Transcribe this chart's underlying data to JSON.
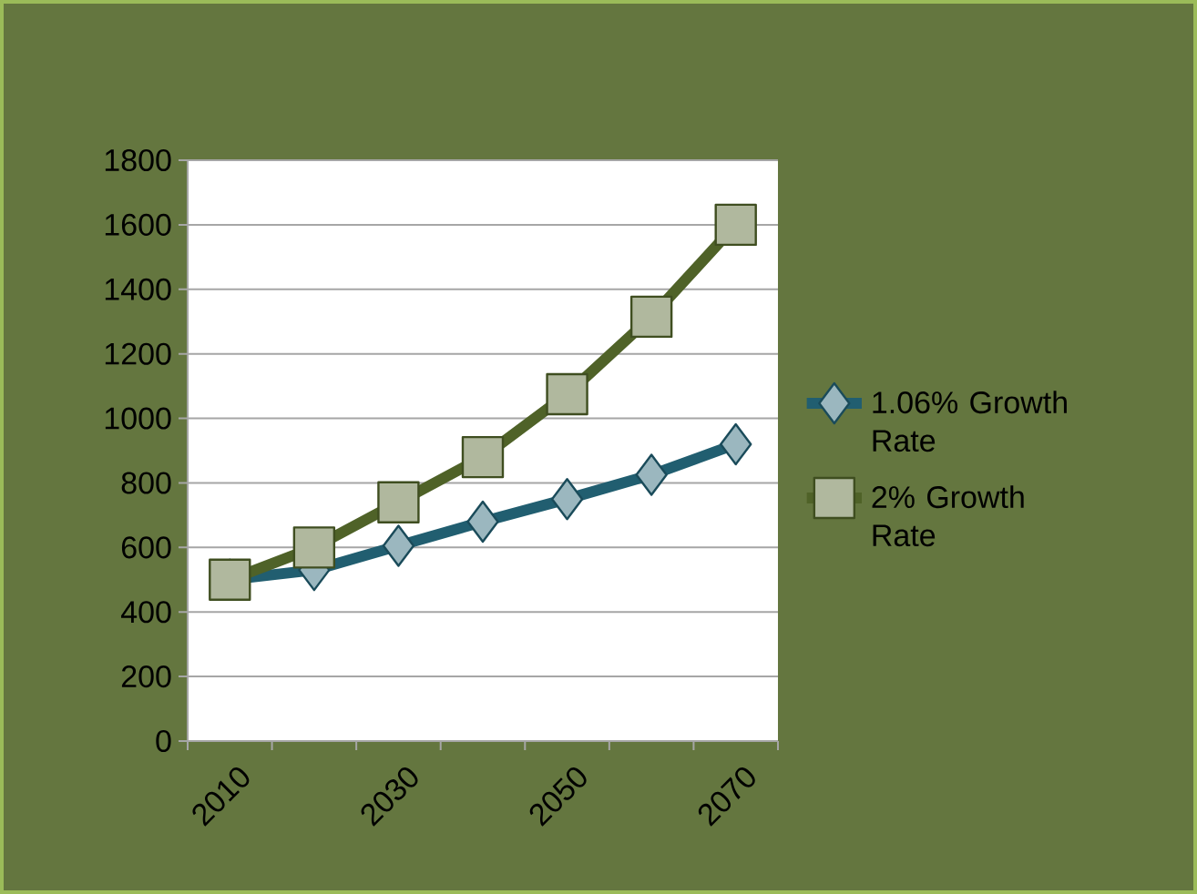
{
  "chart_data": {
    "type": "line",
    "categories": [
      "2010",
      null,
      "2030",
      null,
      "2050",
      null,
      "2070"
    ],
    "series": [
      {
        "name": "1.06% Growth Rate",
        "color": "#215e70",
        "marker": "diamond",
        "values": [
          500,
          530,
          605,
          680,
          750,
          825,
          920
        ]
      },
      {
        "name": "2% Growth Rate",
        "color": "#4f6228",
        "marker": "square",
        "values": [
          500,
          600,
          740,
          880,
          1075,
          1315,
          1600
        ]
      }
    ],
    "ylim": [
      0,
      1800
    ],
    "yticks": [
      0,
      200,
      400,
      600,
      800,
      1000,
      1200,
      1400,
      1600,
      1800
    ],
    "grid": "y",
    "legend": "right"
  }
}
